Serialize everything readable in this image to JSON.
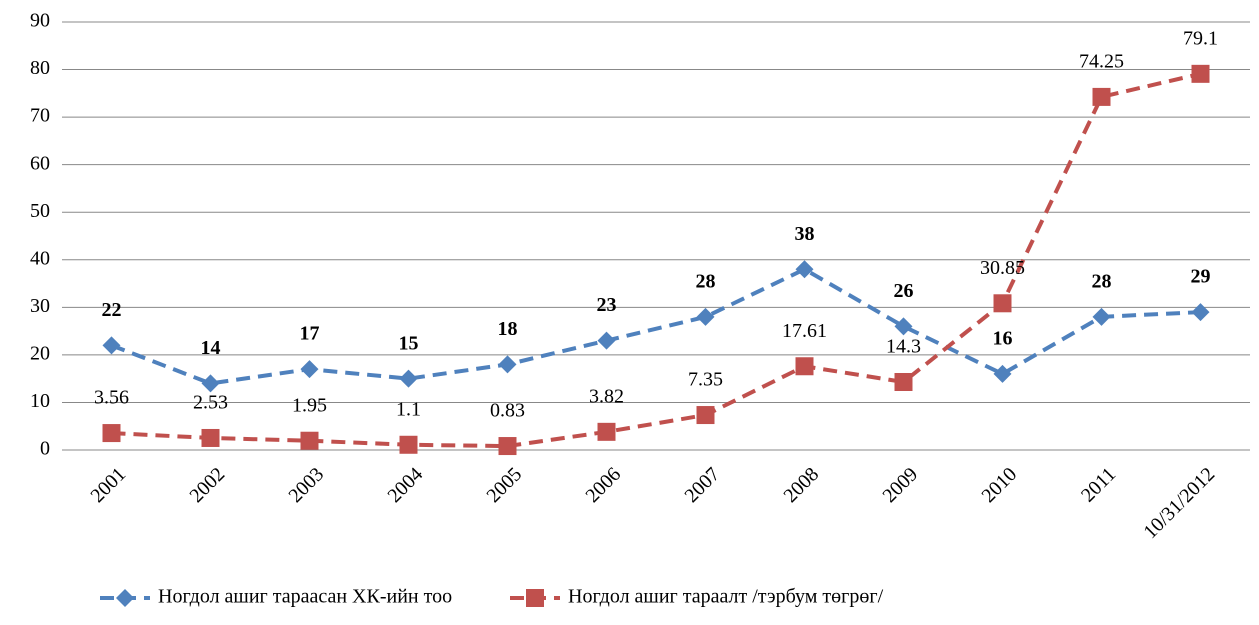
{
  "chart_data": {
    "type": "line",
    "categories": [
      "2001",
      "2002",
      "2003",
      "2004",
      "2005",
      "2006",
      "2007",
      "2008",
      "2009",
      "2010",
      "2011",
      "10/31/2012"
    ],
    "series": [
      {
        "name": "Ногдол ашиг тараасан ХК-ийн тоо",
        "color": "#4f81bd",
        "marker": "diamond",
        "values": [
          22,
          14,
          17,
          15,
          18,
          23,
          28,
          38,
          26,
          16,
          28,
          29
        ]
      },
      {
        "name": "Ногдол ашиг тараалт /тэрбум төгрөг/",
        "color": "#c0504d",
        "marker": "square",
        "values": [
          3.56,
          2.53,
          1.95,
          1.1,
          0.83,
          3.82,
          7.35,
          17.61,
          14.3,
          30.85,
          74.25,
          79.1
        ]
      }
    ],
    "ylim": [
      0,
      90
    ],
    "yticks": [
      0,
      10,
      20,
      30,
      40,
      50,
      60,
      70,
      80,
      90
    ],
    "grid": true,
    "legend": "bottom"
  }
}
